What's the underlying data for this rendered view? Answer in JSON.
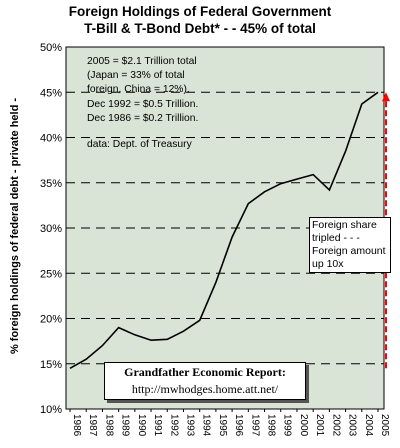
{
  "chart_data": {
    "type": "line",
    "title_line1": "Foreign Holdings of Federal Government",
    "title_line2": "T-Bill & T-Bond Debt* - - 45% of total",
    "ylabel": "% foreign holdings of federal debt - private held -",
    "ylim": [
      10,
      50
    ],
    "yticks": [
      "10%",
      "15%",
      "20%",
      "25%",
      "30%",
      "35%",
      "40%",
      "45%",
      "50%"
    ],
    "x": [
      "1986",
      "1987",
      "1988",
      "1989",
      "1990",
      "1991",
      "1992",
      "1993",
      "1994",
      "1995",
      "1996",
      "1997",
      "1998",
      "1999",
      "2000",
      "2001",
      "2002",
      "2003",
      "2004",
      "2005"
    ],
    "values": [
      14.5,
      15.5,
      17.0,
      19.0,
      18.2,
      17.6,
      17.7,
      18.6,
      19.8,
      24.0,
      29.0,
      32.7,
      34.0,
      34.9,
      35.4,
      35.9,
      34.2,
      38.5,
      43.7,
      45.0
    ],
    "grid": "dashed horizontal",
    "line_color": "#000000",
    "plot_bg": "#d9e4d6",
    "arrow_color": "#ff0000"
  },
  "notes": {
    "lines": [
      "2005 = $2.1 Trillion total",
      "(Japan = 33% of total",
      "foreign, China = 12%).",
      "Dec 1992 = $0.5 Trillion.",
      "Dec 1986 = $0.2 Trillion.",
      "",
      "data: Dept. of Treasury"
    ]
  },
  "callout": {
    "lines": [
      "Foreign share",
      "tripled - - -",
      "Foreign amount",
      "up 10x"
    ]
  },
  "credit": {
    "line1": "Grandfather Economic Report:",
    "line2": "http://mwhodges.home.att.net/"
  }
}
